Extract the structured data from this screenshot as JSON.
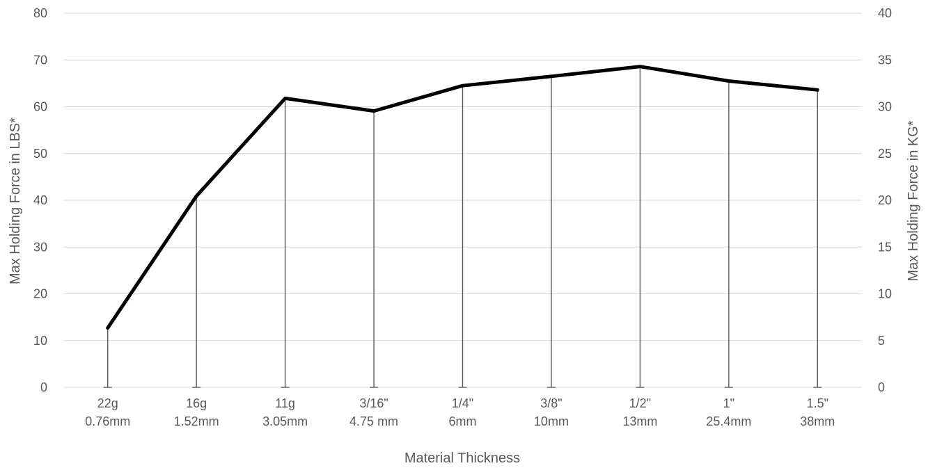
{
  "chart_data": {
    "type": "line",
    "categories": [
      [
        "22g",
        "0.76mm"
      ],
      [
        "16g",
        "1.52mm"
      ],
      [
        "11g",
        "3.05mm"
      ],
      [
        "3/16\"",
        "4.75 mm"
      ],
      [
        "1/4\"",
        "6mm"
      ],
      [
        "3/8\"",
        "10mm"
      ],
      [
        "1/2\"",
        "13mm"
      ],
      [
        "1\"",
        "25.4mm"
      ],
      [
        "1.5\"",
        "38mm"
      ]
    ],
    "series": [
      {
        "values": [
          12.7,
          40.9,
          61.8,
          59.1,
          64.5,
          66.5,
          68.6,
          65.5,
          63.6
        ]
      }
    ],
    "xlabel": "Material Thickness",
    "ylabel": "Max Holding Force in LBS*",
    "y2label": "Max Holding Force in KG*",
    "ylim": [
      0,
      80
    ],
    "y2lim": [
      0,
      40
    ],
    "yticks": [
      0,
      10,
      20,
      30,
      40,
      50,
      60,
      70,
      80
    ],
    "y2ticks": [
      0,
      5,
      10,
      15,
      20,
      25,
      30,
      35,
      40
    ],
    "grid": true,
    "drop_lines": true,
    "line_color": "#000000"
  }
}
